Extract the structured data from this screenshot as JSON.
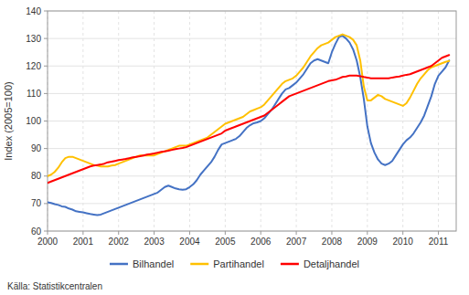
{
  "chart_data": {
    "type": "line",
    "ylabel": "Index (2005=100)",
    "annotations": [
      "Källa: Statistikcentralen"
    ],
    "xlim": [
      2000,
      2011.5
    ],
    "xticks": [
      2000,
      2001,
      2002,
      2003,
      2004,
      2005,
      2006,
      2007,
      2008,
      2009,
      2010,
      2011
    ],
    "ylim": [
      60,
      140
    ],
    "yticks": [
      60,
      70,
      80,
      90,
      100,
      110,
      120,
      130,
      140
    ],
    "grid": true,
    "legend": "bottom",
    "x": [
      2000.0,
      2000.1,
      2000.2,
      2000.3,
      2000.4,
      2000.5,
      2000.6,
      2000.7,
      2000.8,
      2000.9,
      2001.0,
      2001.1,
      2001.2,
      2001.3,
      2001.4,
      2001.5,
      2001.6,
      2001.7,
      2001.8,
      2001.9,
      2002.0,
      2002.1,
      2002.2,
      2002.3,
      2002.4,
      2002.5,
      2002.6,
      2002.7,
      2002.8,
      2002.9,
      2003.0,
      2003.1,
      2003.2,
      2003.3,
      2003.4,
      2003.5,
      2003.6,
      2003.7,
      2003.8,
      2003.9,
      2004.0,
      2004.1,
      2004.2,
      2004.3,
      2004.4,
      2004.5,
      2004.6,
      2004.7,
      2004.8,
      2004.9,
      2005.0,
      2005.1,
      2005.2,
      2005.3,
      2005.4,
      2005.5,
      2005.6,
      2005.7,
      2005.8,
      2005.9,
      2006.0,
      2006.1,
      2006.2,
      2006.3,
      2006.4,
      2006.5,
      2006.6,
      2006.7,
      2006.8,
      2006.9,
      2007.0,
      2007.1,
      2007.2,
      2007.3,
      2007.4,
      2007.5,
      2007.6,
      2007.7,
      2007.8,
      2007.9,
      2008.0,
      2008.1,
      2008.2,
      2008.3,
      2008.4,
      2008.5,
      2008.6,
      2008.7,
      2008.8,
      2008.9,
      2009.0,
      2009.1,
      2009.2,
      2009.3,
      2009.4,
      2009.5,
      2009.6,
      2009.7,
      2009.8,
      2009.9,
      2010.0,
      2010.1,
      2010.2,
      2010.3,
      2010.4,
      2010.5,
      2010.6,
      2010.7,
      2010.8,
      2010.9,
      2011.0,
      2011.1,
      2011.2,
      2011.3
    ],
    "series": [
      {
        "name": "Bilhandel",
        "color": "#4472c4",
        "values": [
          70.5,
          70.2,
          69.8,
          69.5,
          69.0,
          68.8,
          68.2,
          67.8,
          67.2,
          67.0,
          66.8,
          66.5,
          66.2,
          66.0,
          65.8,
          66.0,
          66.5,
          67.0,
          67.5,
          68.0,
          68.5,
          69.0,
          69.5,
          70.0,
          70.5,
          71.0,
          71.5,
          72.0,
          72.5,
          73.0,
          73.5,
          74.0,
          75.0,
          76.0,
          76.5,
          76.0,
          75.5,
          75.2,
          75.0,
          75.2,
          76.0,
          77.0,
          78.5,
          80.5,
          82.0,
          83.5,
          85.0,
          87.0,
          89.5,
          91.5,
          92.0,
          92.5,
          93.0,
          93.5,
          94.5,
          96.0,
          97.5,
          98.5,
          99.2,
          99.5,
          100.0,
          101.0,
          102.5,
          104.0,
          106.0,
          108.0,
          110.0,
          111.5,
          112.0,
          113.0,
          114.0,
          115.5,
          117.0,
          119.0,
          121.0,
          122.0,
          122.5,
          122.0,
          121.5,
          121.0,
          125.0,
          128.0,
          130.5,
          131.0,
          130.0,
          128.5,
          126.0,
          122.0,
          116.0,
          108.0,
          98.0,
          92.0,
          88.5,
          86.0,
          84.5,
          84.0,
          84.5,
          85.5,
          87.5,
          89.5,
          91.5,
          93.0,
          94.0,
          95.5,
          97.5,
          99.5,
          102.0,
          105.5,
          109.0,
          113.5,
          116.5,
          118.0,
          119.5,
          122.0
        ]
      },
      {
        "name": "Partihandel",
        "color": "#ffc000",
        "values": [
          80.0,
          80.5,
          81.5,
          83.0,
          85.0,
          86.5,
          87.0,
          87.0,
          86.5,
          86.0,
          85.5,
          85.0,
          84.5,
          84.0,
          83.8,
          83.5,
          83.5,
          83.5,
          83.8,
          84.0,
          84.5,
          85.0,
          85.5,
          86.0,
          86.5,
          87.0,
          87.5,
          87.5,
          87.5,
          87.5,
          87.5,
          88.0,
          88.5,
          89.0,
          89.5,
          90.0,
          90.5,
          91.0,
          91.0,
          91.0,
          91.5,
          92.0,
          92.5,
          93.0,
          93.5,
          94.0,
          95.0,
          96.0,
          97.0,
          98.0,
          99.0,
          99.5,
          100.0,
          100.5,
          101.0,
          101.5,
          102.5,
          103.5,
          104.0,
          104.5,
          105.0,
          106.0,
          107.5,
          109.0,
          110.5,
          112.0,
          113.5,
          114.5,
          115.0,
          115.5,
          116.5,
          118.0,
          119.5,
          121.5,
          123.5,
          125.0,
          126.5,
          127.5,
          128.0,
          128.5,
          129.5,
          130.5,
          131.0,
          131.5,
          131.0,
          130.5,
          129.5,
          127.5,
          122.0,
          112.5,
          107.5,
          107.5,
          108.5,
          109.5,
          109.0,
          108.0,
          107.5,
          107.0,
          106.5,
          106.0,
          105.5,
          106.5,
          108.5,
          111.0,
          113.5,
          115.5,
          117.0,
          118.5,
          119.5,
          120.0,
          120.5,
          121.0,
          121.5,
          121.8
        ]
      },
      {
        "name": "Detaljhandel",
        "color": "#ff0000",
        "values": [
          77.5,
          78.0,
          78.5,
          79.0,
          79.5,
          80.0,
          80.5,
          81.0,
          81.5,
          82.0,
          82.5,
          83.0,
          83.5,
          83.8,
          84.0,
          84.2,
          84.5,
          85.0,
          85.2,
          85.5,
          85.8,
          86.0,
          86.2,
          86.5,
          86.8,
          87.0,
          87.2,
          87.5,
          87.8,
          88.0,
          88.2,
          88.5,
          88.8,
          89.0,
          89.2,
          89.5,
          89.8,
          90.0,
          90.2,
          90.5,
          91.0,
          91.5,
          92.0,
          92.5,
          93.0,
          93.5,
          94.0,
          94.5,
          95.0,
          95.5,
          96.5,
          97.0,
          97.5,
          98.0,
          98.5,
          99.0,
          99.5,
          100.0,
          100.5,
          101.0,
          101.5,
          102.0,
          103.0,
          104.0,
          105.0,
          106.0,
          107.0,
          108.0,
          109.0,
          109.5,
          110.0,
          110.5,
          111.0,
          111.5,
          112.0,
          112.5,
          113.0,
          113.5,
          114.0,
          114.5,
          114.8,
          115.0,
          115.5,
          116.0,
          116.2,
          116.5,
          116.5,
          116.5,
          116.3,
          116.0,
          115.8,
          115.5,
          115.5,
          115.5,
          115.5,
          115.5,
          115.5,
          115.8,
          116.0,
          116.2,
          116.5,
          116.8,
          117.0,
          117.5,
          118.0,
          118.5,
          119.0,
          119.5,
          120.0,
          121.0,
          122.0,
          123.0,
          123.5,
          124.0
        ]
      }
    ]
  }
}
